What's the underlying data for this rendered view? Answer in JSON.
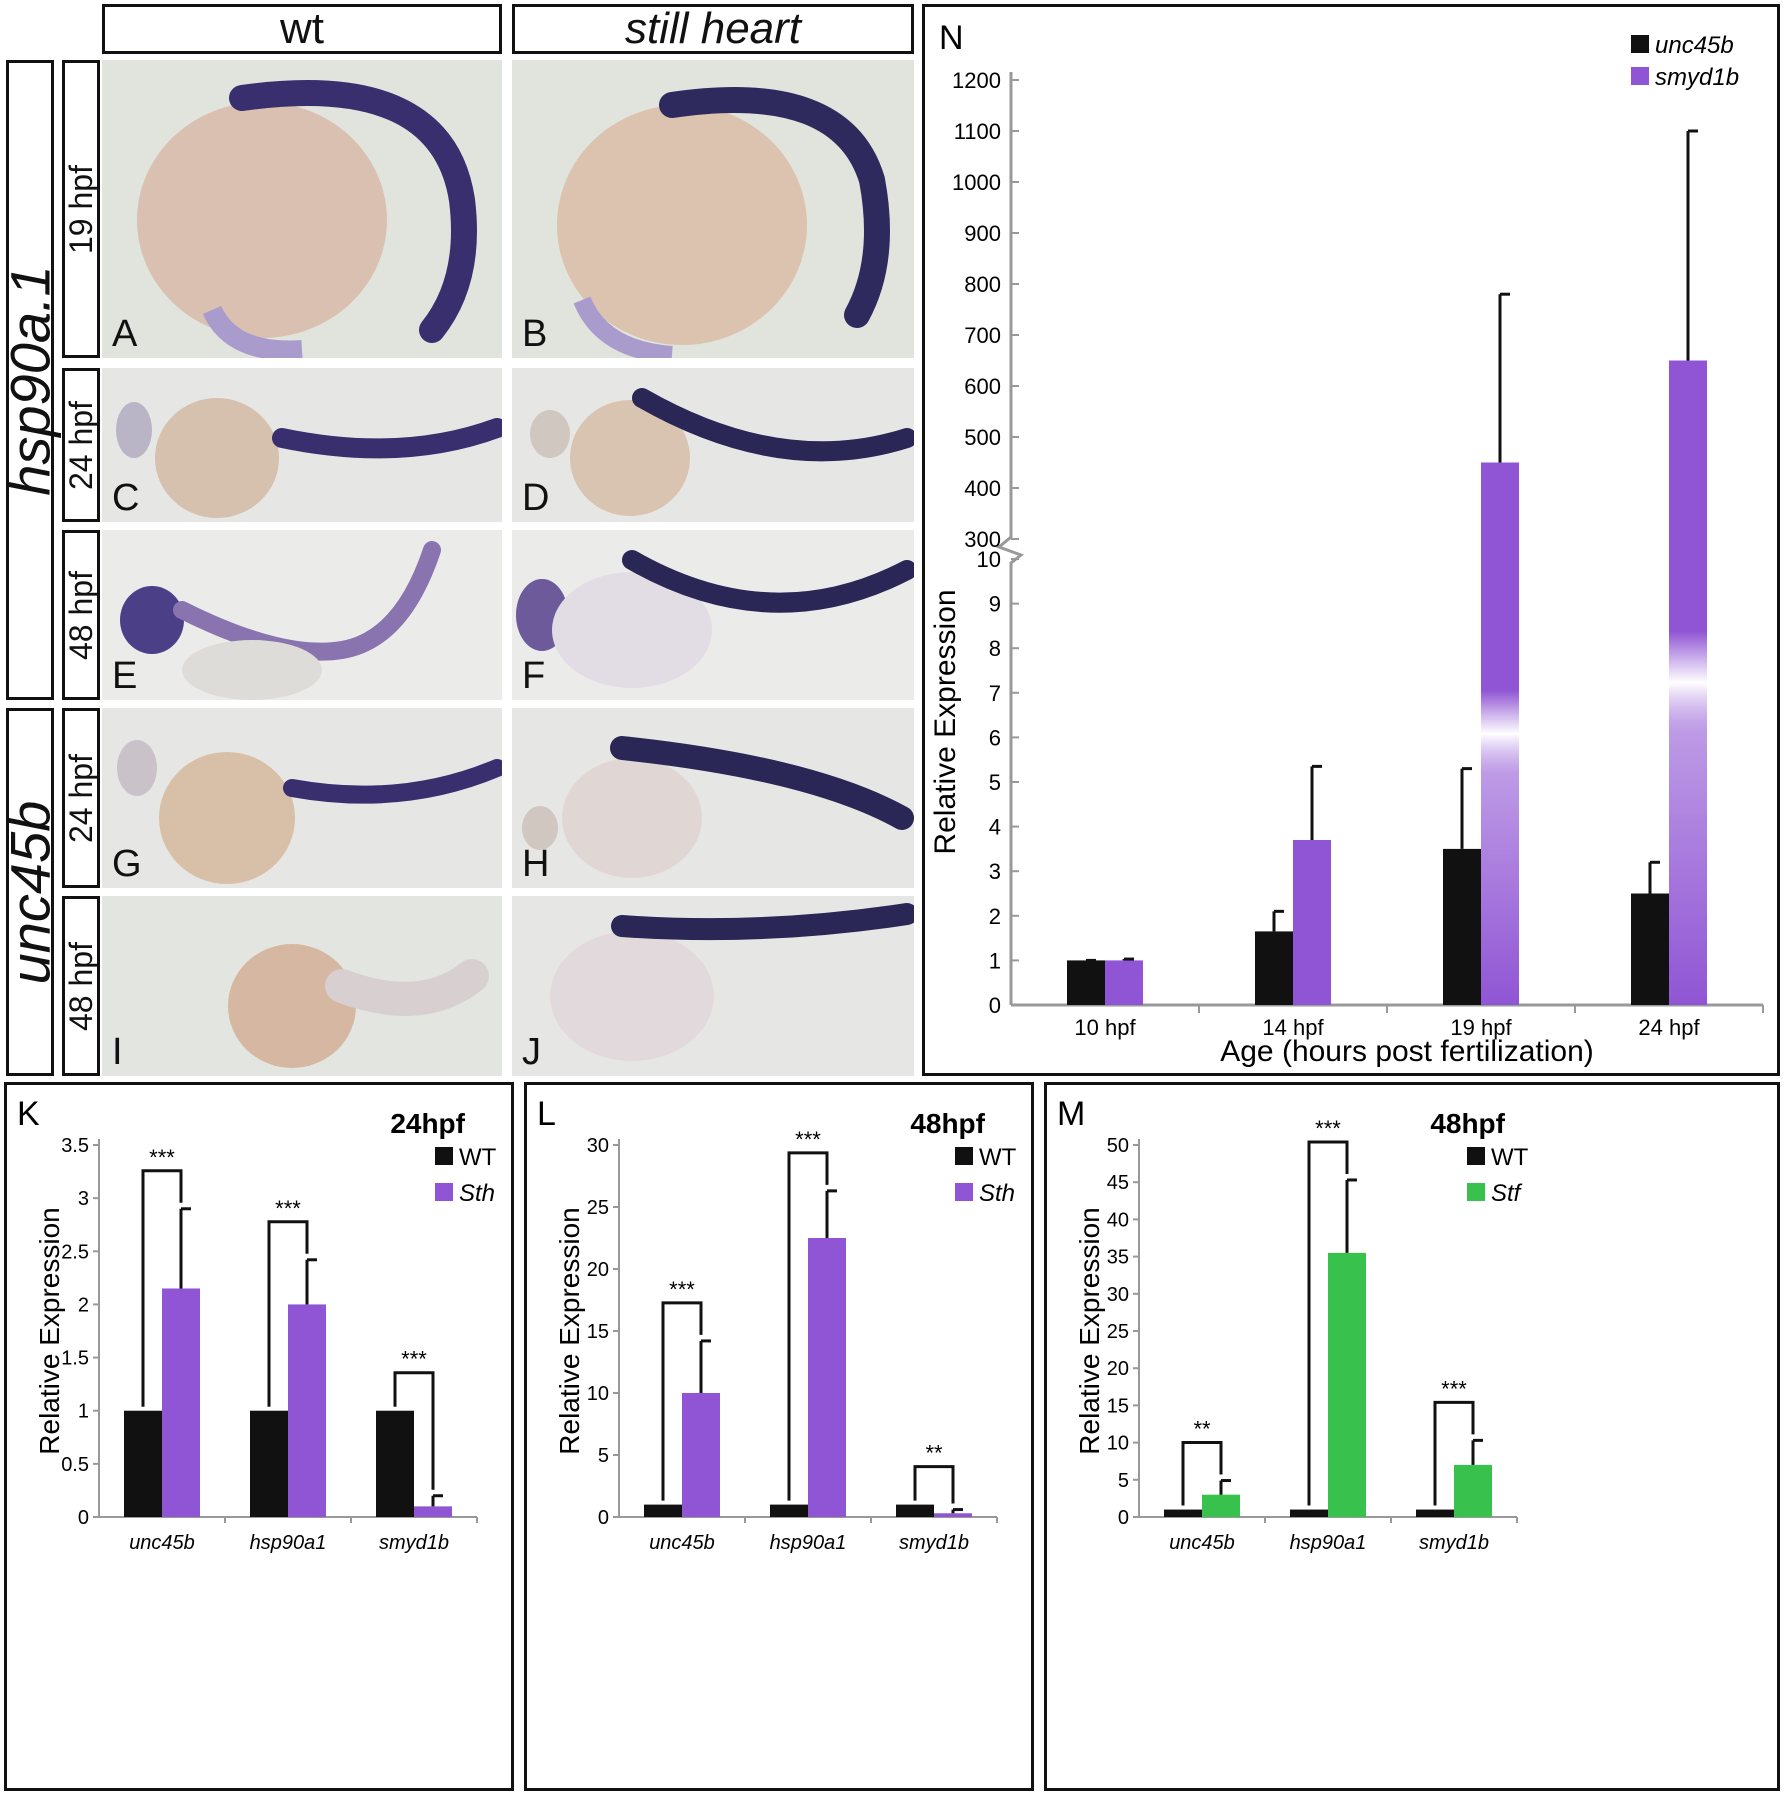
{
  "headers": {
    "wt": "wt",
    "mutant": "still heart"
  },
  "genes": {
    "top": "hsp90a.1",
    "bottom": "unc45b"
  },
  "stages": {
    "s19": "19 hpf",
    "s24a": "24 hpf",
    "s48a": "48 hpf",
    "s24b": "24 hpf",
    "s48b": "48 hpf"
  },
  "panels": [
    "A",
    "B",
    "C",
    "D",
    "E",
    "F",
    "G",
    "H",
    "I",
    "J"
  ],
  "colors": {
    "black": "#111111",
    "purple": "#9055d4",
    "green": "#38c24d",
    "axis": "#999999"
  },
  "chart_data": [
    {
      "id": "N",
      "letter": "N",
      "type": "bar",
      "categories": [
        "10 hpf",
        "14 hpf",
        "19 hpf",
        "24 hpf"
      ],
      "series": [
        {
          "name": "unc45b",
          "values": [
            1.0,
            1.65,
            3.5,
            2.5
          ],
          "errors": [
            0.0,
            0.45,
            1.8,
            0.7
          ]
        },
        {
          "name": "smyd1b",
          "values": [
            1.0,
            3.7,
            450,
            650
          ],
          "errors": [
            0.03,
            1.65,
            330,
            450
          ]
        }
      ],
      "xlabel": "Age (hours post fertilization)",
      "ylabel": "Relative Expression",
      "y_lower_ticks": [
        0,
        1,
        2,
        3,
        4,
        5,
        6,
        7,
        8,
        9,
        10
      ],
      "y_upper_ticks": [
        300,
        400,
        500,
        600,
        700,
        800,
        900,
        1000,
        1100,
        1200
      ],
      "axis_break": [
        10,
        300
      ],
      "legend": "top-right"
    },
    {
      "id": "K",
      "letter": "K",
      "stage": "24hpf",
      "type": "bar",
      "categories": [
        "unc45b",
        "hsp90a1",
        "smyd1b"
      ],
      "series": [
        {
          "name": "WT",
          "values": [
            1,
            1,
            1
          ],
          "errors": [
            0,
            0,
            0
          ]
        },
        {
          "name": "Sth",
          "values": [
            2.15,
            2.0,
            0.1
          ],
          "errors": [
            0.75,
            0.42,
            0.1
          ]
        }
      ],
      "significance": [
        "***",
        "***",
        "***"
      ],
      "ylabel": "Relative Expression",
      "ylim": [
        0,
        3.5
      ],
      "yticks": [
        0,
        0.5,
        1,
        1.5,
        2,
        2.5,
        3,
        3.5
      ],
      "legend": "top-right"
    },
    {
      "id": "L",
      "letter": "L",
      "stage": "48hpf",
      "type": "bar",
      "categories": [
        "unc45b",
        "hsp90a1",
        "smyd1b"
      ],
      "series": [
        {
          "name": "WT",
          "values": [
            1,
            1,
            1
          ],
          "errors": [
            0,
            0,
            0
          ]
        },
        {
          "name": "Sth",
          "values": [
            10,
            22.5,
            0.3
          ],
          "errors": [
            4.2,
            3.8,
            0.3
          ]
        }
      ],
      "significance": [
        "***",
        "***",
        "**"
      ],
      "ylabel": "Relative Expression",
      "ylim": [
        0,
        30
      ],
      "yticks": [
        0,
        5,
        10,
        15,
        20,
        25,
        30
      ],
      "legend": "top-right"
    },
    {
      "id": "M",
      "letter": "M",
      "stage": "48hpf",
      "type": "bar",
      "categories": [
        "unc45b",
        "hsp90a1",
        "smyd1b"
      ],
      "series": [
        {
          "name": "WT",
          "values": [
            1,
            1,
            1
          ],
          "errors": [
            0,
            0,
            0
          ]
        },
        {
          "name": "Stf",
          "values": [
            3,
            35.5,
            7
          ],
          "errors": [
            1.9,
            9.8,
            3.3
          ]
        }
      ],
      "significance": [
        "**",
        "***",
        "***"
      ],
      "ylabel": "Relative Expression",
      "ylim": [
        0,
        50
      ],
      "yticks": [
        0,
        5,
        10,
        15,
        20,
        25,
        30,
        35,
        40,
        45,
        50
      ],
      "legend": "top-right"
    }
  ]
}
